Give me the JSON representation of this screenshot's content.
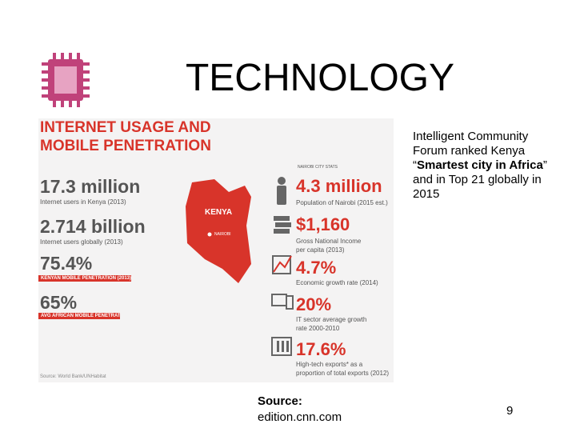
{
  "title": "TECHNOLOGY",
  "infographic": {
    "heading": [
      "INTERNET USAGE AND",
      "MOBILE PENETRATION"
    ],
    "left_stats": [
      {
        "value": "17.3 million",
        "caption": "Internet users in Kenya (2013)"
      },
      {
        "value": "2.714 billion",
        "caption": "Internet users globally (2013)"
      },
      {
        "value": "75.4%",
        "caption": "KENYAN MOBILE PENETRATION (2013)"
      },
      {
        "value": "65%",
        "caption": "AVG AFRICAN MOBILE PENETRATION (2013)"
      }
    ],
    "map_labels": [
      "KENYA",
      "NAIROBI"
    ],
    "right_header": "NAIROBI CITY STATS",
    "right_stats": [
      {
        "value": "4.3 million",
        "caption": "Population of Nairobi (2015 est.)"
      },
      {
        "value": "$1,160",
        "caption": "Gross National Income per capita (2013)"
      },
      {
        "value": "4.7%",
        "caption": "Economic growth rate (2014)"
      },
      {
        "value": "20%",
        "caption": "IT sector average growth rate 2000-2010"
      },
      {
        "value": "17.6%",
        "caption": "High-tech exports* as a proportion of total exports (2012)"
      }
    ],
    "source": "Source: World Bank/UNHabitat"
  },
  "side_text": {
    "before": "Intelligent Community Forum ranked Kenya “",
    "bold": "Smartest city in Africa",
    "after": "” and in Top 21 globally in 2015"
  },
  "source": {
    "label": "Source:",
    "text": "edition.cnn.com"
  },
  "page_number": "9"
}
